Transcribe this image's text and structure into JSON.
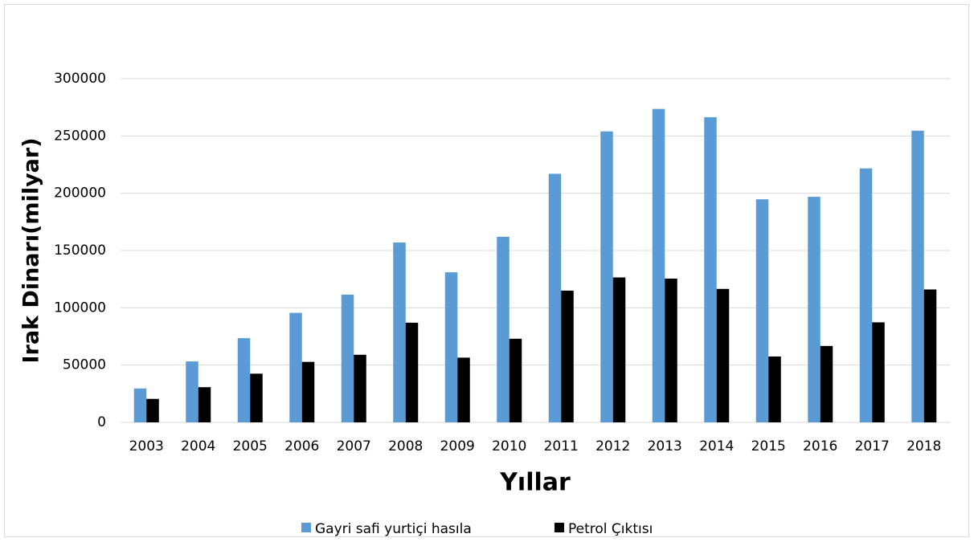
{
  "chart_data": {
    "type": "bar",
    "x_label": "Yıllar",
    "y_label": "Irak Dinarı(milyar)",
    "categories": [
      "2003",
      "2004",
      "2005",
      "2006",
      "2007",
      "2008",
      "2009",
      "2010",
      "2011",
      "2012",
      "2013",
      "2014",
      "2015",
      "2016",
      "2017",
      "2018"
    ],
    "series": [
      {
        "name": "Gayri safi yurtiçi hasıla",
        "color": "#5b9bd5",
        "values": [
          29600,
          53200,
          73500,
          95600,
          111500,
          157000,
          131000,
          162000,
          217000,
          254000,
          273600,
          266400,
          194700,
          196900,
          221700,
          254600
        ]
      },
      {
        "name": "Petrol Çıktısı",
        "color": "#000000",
        "values": [
          20500,
          30700,
          42500,
          52800,
          59000,
          87000,
          56500,
          73000,
          115000,
          126500,
          125500,
          116500,
          57500,
          66700,
          87300,
          116000
        ]
      }
    ],
    "ylim": [
      0,
      300000
    ],
    "yticks": [
      0,
      50000,
      100000,
      150000,
      200000,
      250000,
      300000
    ],
    "grid": true,
    "legend": "bottom"
  }
}
